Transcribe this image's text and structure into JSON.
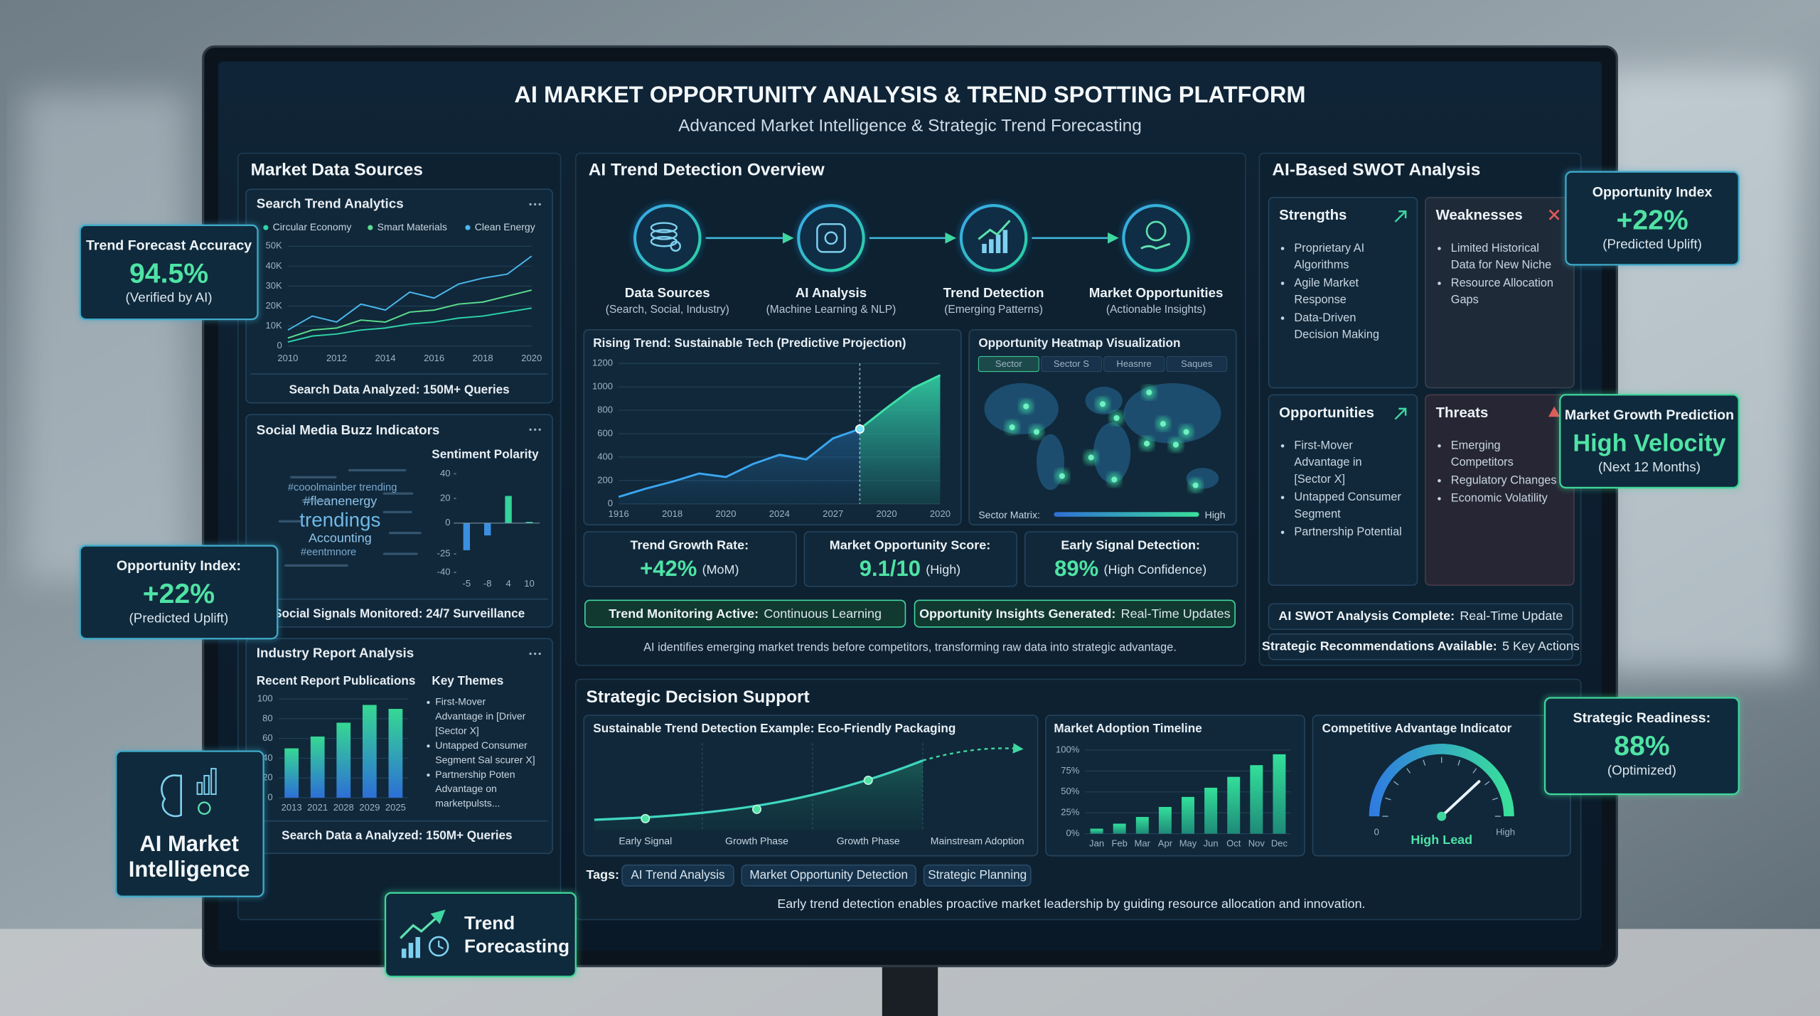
{
  "header": {
    "title": "AI MARKET OPPORTUNITY ANALYSIS & TREND SPOTTING PLATFORM",
    "subtitle": "Advanced Market Intelligence & Strategic Trend Forecasting"
  },
  "market_data_sources": {
    "title": "Market Data Sources",
    "search_trend": {
      "title": "Search Trend Analytics",
      "chart": {
        "type": "line",
        "x": [
          2010,
          2011,
          2012,
          2013,
          2014,
          2015,
          2016,
          2017,
          2018,
          2019,
          2020
        ],
        "xlim": [
          2010,
          2020
        ],
        "xticks": [
          2010,
          2012,
          2014,
          2016,
          2018,
          2020
        ],
        "ylim": [
          0,
          50000
        ],
        "yticks": [
          0,
          {
            "value": 10000,
            "label": "10K"
          },
          {
            "value": 20000,
            "label": "20K"
          },
          {
            "value": 30000,
            "label": "30K"
          },
          {
            "value": 40000,
            "label": "40K"
          },
          {
            "value": 50000,
            "label": "50K"
          }
        ],
        "series": [
          {
            "name": "Circular Economy",
            "color": "#2fd3a8",
            "values": [
              2000,
              5000,
              6000,
              8000,
              9000,
              11000,
              12000,
              14000,
              15000,
              17000,
              19000
            ]
          },
          {
            "name": "Smart Materials",
            "color": "#5cdc8e",
            "values": [
              4000,
              8000,
              9000,
              13000,
              12000,
              17000,
              18000,
              21000,
              22000,
              25000,
              28000
            ]
          },
          {
            "name": "Clean Energy",
            "color": "#4bb8ec",
            "values": [
              8000,
              15000,
              12000,
              21000,
              18000,
              27000,
              24000,
              31000,
              34000,
              36000,
              45000
            ]
          }
        ]
      },
      "footer": "Search Data Analyzed: 150M+ Queries"
    },
    "social_buzz": {
      "title": "Social Media Buzz Indicators",
      "word_cloud": [
        "#cooolmainber trending",
        "#fleanenergy",
        "trendings",
        "Accounting",
        "#eentmnore"
      ],
      "chart": {
        "type": "bar",
        "title": "Sentiment Polarity",
        "categories": [
          "-5",
          "-8",
          "4",
          "10"
        ],
        "values": [
          -22,
          -10,
          22,
          1
        ],
        "colors": [
          "#3b8fe0",
          "#3b8fe0",
          "#34d39a",
          "#34d39a"
        ],
        "ylim": [
          -40,
          40
        ],
        "yticks": [
          40,
          20,
          0,
          -25,
          -40
        ]
      },
      "footer": "Social Signals Monitored: 24/7 Surveillance"
    },
    "industry_reports": {
      "title": "Industry Report Analysis",
      "chart": {
        "type": "bar",
        "title": "Recent Report Publications",
        "categories": [
          "2013",
          "2021",
          "2028",
          "2029",
          "2025"
        ],
        "values": [
          50,
          62,
          76,
          94,
          90
        ],
        "color": "#36d893",
        "ylim": [
          0,
          100
        ],
        "yticks": [
          0,
          20,
          40,
          60,
          80,
          100
        ]
      },
      "key_themes": {
        "title": "Key Themes",
        "items": [
          [
            "First-Mover",
            "Advantage in [Driver",
            "[Sector X]"
          ],
          [
            "Untapped Consumer",
            "Segment Sal scurer X]"
          ],
          [
            "Partnership Poten",
            "Advantage on",
            "marketpulsts..."
          ]
        ]
      },
      "footer": "Search Data a Analyzed: 150M+ Queries"
    }
  },
  "overlays": {
    "trend_forecast_accuracy": {
      "label": "Trend Forecast Accuracy",
      "value": "94.5%",
      "note": "(Verified by AI)"
    },
    "opportunity_index_left": {
      "label": "Opportunity Index:",
      "value": "+22%",
      "note": "(Predicted Uplift)"
    },
    "ai_market_intelligence": {
      "lines": [
        "AI Market",
        "Intelligence"
      ]
    },
    "trend_forecasting": {
      "lines": [
        "Trend",
        "Forecasting"
      ]
    },
    "opportunity_index_right": {
      "label": "Opportunity Index",
      "value": "+22%",
      "note": "(Predicted Uplift)"
    },
    "market_growth": {
      "label": "Market Growth Prediction",
      "value": "High Velocity",
      "note": "(Next 12 Months)"
    },
    "strategic_readiness": {
      "label": "Strategic Readiness:",
      "value": "88%",
      "note": "(Optimized)"
    }
  },
  "trend_detection": {
    "title": "AI Trend Detection Overview",
    "steps": [
      {
        "label": "Data Sources",
        "sub": "(Search, Social, Industry)"
      },
      {
        "label": "AI Analysis",
        "sub": "(Machine Learning & NLP)"
      },
      {
        "label": "Trend Detection",
        "sub": "(Emerging Patterns)"
      },
      {
        "label": "Market Opportunities",
        "sub": "(Actionable Insights)"
      }
    ],
    "rising_trend": {
      "type": "line",
      "title": "Rising Trend: Sustainable Tech (Predictive Projection)",
      "categories": [
        "1916",
        null,
        "2018",
        null,
        "2020",
        null,
        "2024",
        null,
        "2027",
        null,
        "2020",
        null,
        "2020"
      ],
      "values": [
        60,
        130,
        190,
        260,
        230,
        340,
        420,
        380,
        560,
        640,
        820,
        990,
        1100
      ],
      "color": "#3aa6f0",
      "ylim": [
        0,
        1200
      ],
      "yticks": [
        0,
        200,
        400,
        600,
        800,
        1000,
        1200
      ]
    },
    "heatmap": {
      "title": "Opportunity Heatmap Visualization",
      "tabs": [
        "Sector",
        "Sector S",
        "Heasnre",
        "Saques"
      ],
      "legend_label": "Sector Matrix:",
      "legend_high": "High"
    },
    "metrics": [
      {
        "label": "Trend Growth Rate:",
        "value": "+42%",
        "qualifier": "(MoM)"
      },
      {
        "label": "Market Opportunity Score:",
        "value": "9.1/10",
        "qualifier": "(High)"
      },
      {
        "label": "Early Signal Detection:",
        "value": "89%",
        "qualifier": "(High Confidence)"
      }
    ],
    "status": [
      {
        "label": "Trend Monitoring Active:",
        "text": "Continuous Learning"
      },
      {
        "label": "Opportunity Insights Generated:",
        "text": "Real-Time Updates"
      }
    ],
    "note": "AI identifies emerging market trends before competitors, transforming raw data into strategic advantage."
  },
  "swot": {
    "title": "AI-Based SWOT Analysis",
    "quadrants": [
      {
        "title": "Strengths",
        "items": [
          [
            "Proprietary AI",
            "Algorithms"
          ],
          [
            "Agile Market",
            "Response"
          ],
          [
            "Data-Driven",
            "Decision Making"
          ]
        ]
      },
      {
        "title": "Weaknesses",
        "items": [
          [
            "Limited Historical",
            "Data for New Niche"
          ],
          [
            "Resource Allocation",
            "Gaps"
          ]
        ]
      },
      {
        "title": "Opportunities",
        "items": [
          [
            "First-Mover",
            "Advantage in",
            "[Sector X]"
          ],
          [
            "Untapped Consumer",
            "Segment"
          ],
          [
            "Partnership Potential"
          ]
        ]
      },
      {
        "title": "Threats",
        "items": [
          [
            "Emerging",
            "Competitors"
          ],
          [
            "Regulatory Changes"
          ],
          [
            "Economic Volatility"
          ]
        ]
      }
    ],
    "status": [
      {
        "label": "AI SWOT Analysis Complete:",
        "text": "Real-Time Update"
      },
      {
        "label": "Strategic Recommendations Available:",
        "text": "5 Key Actions"
      }
    ]
  },
  "decision_support": {
    "title": "Strategic Decision Support",
    "example": {
      "title": "Sustainable Trend Detection Example: Eco-Friendly Packaging",
      "phases": [
        "Early Signal",
        "Growth Phase",
        "Growth Phase",
        "Mainstream Adoption"
      ]
    },
    "adoption": {
      "type": "bar",
      "title": "Market Adoption Timeline",
      "categories": [
        "Jan",
        "Feb",
        "Mar",
        "Apr",
        "May",
        "Jun",
        "Oct",
        "Nov",
        "Dec"
      ],
      "values": [
        6,
        12,
        20,
        32,
        44,
        55,
        68,
        82,
        95
      ],
      "color": "#33df9a",
      "ylim": [
        0,
        100
      ],
      "yticks": [
        {
          "value": 0,
          "label": "0%"
        },
        {
          "value": 25,
          "label": "25%"
        },
        {
          "value": 50,
          "label": "50%"
        },
        {
          "value": 75,
          "label": "75%"
        },
        {
          "value": 100,
          "label": "100%"
        }
      ]
    },
    "gauge": {
      "title": "Competitive Advantage Indicator",
      "min_label": "0",
      "max_label": "High",
      "reading": "High Lead"
    },
    "tags_label": "Tags:",
    "tags": [
      "AI Trend Analysis",
      "Market Opportunity Detection",
      "Strategic Planning"
    ],
    "note": "Early trend detection enables proactive market leadership by guiding resource allocation and innovation."
  }
}
